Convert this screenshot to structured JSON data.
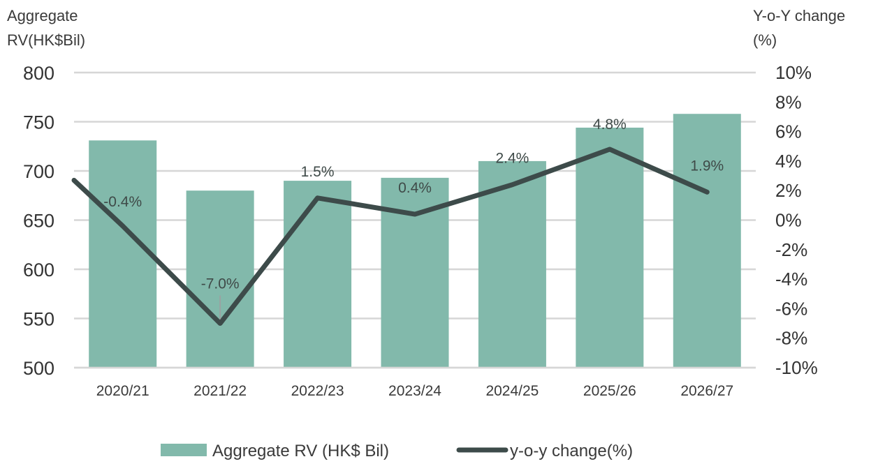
{
  "chart_data": {
    "type": "bar+line",
    "categories": [
      "2020/21",
      "2021/22",
      "2022/23",
      "2023/24",
      "2024/25",
      "2025/26",
      "2026/27"
    ],
    "series": [
      {
        "name": "Aggregate RV (HK$ Bil)",
        "type": "bar",
        "axis": "left",
        "values": [
          731,
          680,
          690,
          693,
          710,
          744,
          758
        ]
      },
      {
        "name": "y-o-y change(%)",
        "type": "line",
        "axis": "right",
        "values": [
          -0.4,
          -7.0,
          1.5,
          0.4,
          2.4,
          4.8,
          1.9
        ],
        "labels": [
          "-0.4%",
          "-7.0%",
          "1.5%",
          "0.4%",
          "2.4%",
          "4.8%",
          "1.9%"
        ],
        "start_value": 2.7
      }
    ],
    "y_left": {
      "title_line1": "Aggregate",
      "title_line2": "RV(HK$Bil)",
      "min": 500,
      "max": 800,
      "ticks": [
        "800",
        "750",
        "700",
        "650",
        "600",
        "550",
        "500"
      ]
    },
    "y_right": {
      "title_line1": "Y-o-Y change",
      "title_line2": "(%)",
      "min": -10,
      "max": 10,
      "ticks": [
        "10%",
        "8%",
        "6%",
        "4%",
        "2%",
        "0%",
        "-2%",
        "-4%",
        "-6%",
        "-8%",
        "-10%"
      ]
    },
    "grid": true,
    "legend_position": "bottom",
    "colors": {
      "bar": "#82b9ab",
      "line": "#3d4b4a",
      "grid": "#d6d6d6"
    }
  }
}
